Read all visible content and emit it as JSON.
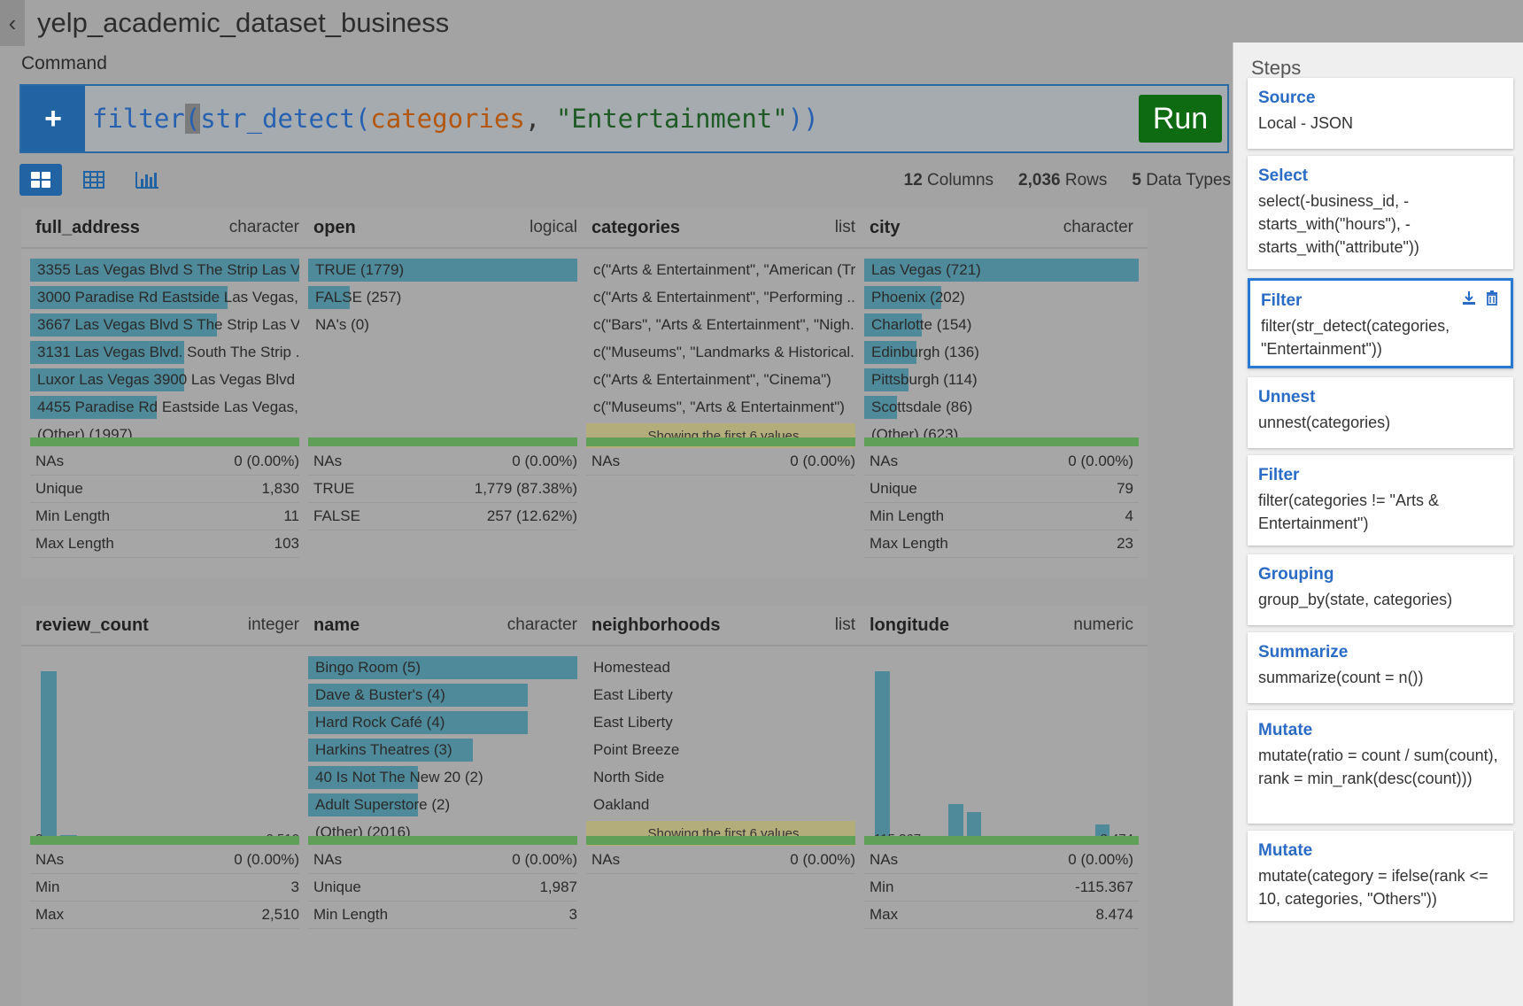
{
  "header": {
    "title": "yelp_academic_dataset_business"
  },
  "command": {
    "label": "Command",
    "parts": {
      "fn": "filter",
      "open": "(",
      "inner_fn": "str_detect(",
      "arg": "categories",
      "comma": ", ",
      "str": "\"Entertainment\"",
      "close": "))"
    },
    "run_label": "Run"
  },
  "summary": {
    "columns_count": "12",
    "columns_label": "Columns",
    "rows_count": "2,036",
    "rows_label": "Rows",
    "types_count": "5",
    "types_label": "Data Types"
  },
  "cards": {
    "full_address": {
      "name": "full_address",
      "type": "character",
      "bars": [
        {
          "label": "3355 Las Vegas Blvd S The Strip Las V...",
          "frac": 1.0
        },
        {
          "label": "3000 Paradise Rd Eastside Las Vegas, ...",
          "frac": 0.72
        },
        {
          "label": "3667 Las Vegas Blvd S The Strip Las V...",
          "frac": 0.68
        },
        {
          "label": "3131 Las Vegas Blvd. South The Strip ...",
          "frac": 0.56
        },
        {
          "label": "Luxor Las Vegas 3900 Las Vegas Blvd ...",
          "frac": 0.56
        },
        {
          "label": "4455 Paradise Rd Eastside Las Vegas, ...",
          "frac": 0.46
        }
      ],
      "other": "(Other) (1997)",
      "stats": [
        [
          "NAs",
          "0 (0.00%)"
        ],
        [
          "Unique",
          "1,830"
        ],
        [
          "Min Length",
          "11"
        ],
        [
          "Max Length",
          "103"
        ]
      ]
    },
    "open": {
      "name": "open",
      "type": "logical",
      "bars": [
        {
          "label": "TRUE (1779)",
          "frac": 1.0
        },
        {
          "label": "FALSE (257)",
          "frac": 0.15
        }
      ],
      "other": "NA's (0)",
      "stats": [
        [
          "NAs",
          "0 (0.00%)"
        ],
        [
          "TRUE",
          "1,779 (87.38%)"
        ],
        [
          "FALSE",
          "257 (12.62%)"
        ]
      ]
    },
    "categories": {
      "name": "categories",
      "type": "list",
      "rows": [
        "c(\"Arts & Entertainment\", \"American (Tr...",
        "c(\"Arts & Entertainment\", \"Performing ...",
        "c(\"Bars\", \"Arts & Entertainment\", \"Nigh...",
        "c(\"Museums\", \"Landmarks & Historical...",
        "c(\"Arts & Entertainment\", \"Cinema\")",
        "c(\"Museums\", \"Arts & Entertainment\")"
      ],
      "notice": "Showing the first 6 values",
      "stats": [
        [
          "NAs",
          "0 (0.00%)"
        ]
      ]
    },
    "city": {
      "name": "city",
      "type": "character",
      "bars": [
        {
          "label": "Las Vegas (721)",
          "frac": 1.0
        },
        {
          "label": "Phoenix (202)",
          "frac": 0.28
        },
        {
          "label": "Charlotte (154)",
          "frac": 0.21
        },
        {
          "label": "Edinburgh (136)",
          "frac": 0.19
        },
        {
          "label": "Pittsburgh (114)",
          "frac": 0.16
        },
        {
          "label": "Scottsdale (86)",
          "frac": 0.12
        }
      ],
      "other": "(Other) (623)",
      "stats": [
        [
          "NAs",
          "0 (0.00%)"
        ],
        [
          "Unique",
          "79"
        ],
        [
          "Min Length",
          "4"
        ],
        [
          "Max Length",
          "23"
        ]
      ]
    },
    "review_count": {
      "name": "review_count",
      "type": "integer",
      "hist": [
        1.0,
        0.035,
        0.01,
        0.01,
        0.01,
        0.01,
        0.01,
        0.01,
        0.01,
        0.01,
        0.01,
        0.01,
        0.01
      ],
      "min_label": "3",
      "max_label": "2.510",
      "stats": [
        [
          "NAs",
          "0 (0.00%)"
        ],
        [
          "Min",
          "3"
        ],
        [
          "Max",
          "2,510"
        ]
      ]
    },
    "name": {
      "name": "name",
      "type": "character",
      "bars": [
        {
          "label": "Bingo Room (5)",
          "frac": 1.0
        },
        {
          "label": "Dave & Buster's (4)",
          "frac": 0.8
        },
        {
          "label": "Hard Rock Café (4)",
          "frac": 0.8
        },
        {
          "label": "Harkins Theatres (3)",
          "frac": 0.6
        },
        {
          "label": "40 Is Not The New 20 (2)",
          "frac": 0.4
        },
        {
          "label": "Adult Superstore (2)",
          "frac": 0.4
        }
      ],
      "other": "(Other) (2016)",
      "stats": [
        [
          "NAs",
          "0 (0.00%)"
        ],
        [
          "Unique",
          "1,987"
        ],
        [
          "Min Length",
          "3"
        ]
      ]
    },
    "neighborhoods": {
      "name": "neighborhoods",
      "type": "list",
      "rows": [
        "Homestead",
        "East Liberty",
        "East Liberty",
        "Point Breeze",
        "North Side",
        "Oakland"
      ],
      "notice": "Showing the first 6 values",
      "stats": [
        [
          "NAs",
          "0 (0.00%)"
        ]
      ]
    },
    "longitude": {
      "name": "longitude",
      "type": "numeric",
      "hist": [
        1.0,
        0.01,
        0.01,
        0.01,
        0.22,
        0.17,
        0.01,
        0.01,
        0.01,
        0.01,
        0.01,
        0.01,
        0.1,
        0.03
      ],
      "min_label": "-115.367",
      "max_label": "8.474",
      "stats": [
        [
          "NAs",
          "0 (0.00%)"
        ],
        [
          "Min",
          "-115.367"
        ],
        [
          "Max",
          "8.474"
        ]
      ]
    }
  },
  "steps": {
    "title": "Steps",
    "items": [
      {
        "name": "Source",
        "code": "Local - JSON"
      },
      {
        "name": "Select",
        "code": "select(-business_id, -starts_with(\"hours\"), -starts_with(\"attribute\"))"
      },
      {
        "name": "Filter",
        "code": "filter(str_detect(categories, \"Entertainment\"))"
      },
      {
        "name": "Unnest",
        "code": "unnest(categories)"
      },
      {
        "name": "Filter",
        "code": "filter(categories != \"Arts & Entertainment\")"
      },
      {
        "name": "Grouping",
        "code": "group_by(state, categories)"
      },
      {
        "name": "Summarize",
        "code": "summarize(count = n())"
      },
      {
        "name": "Mutate",
        "code": "mutate(ratio = count / sum(count), rank = min_rank(desc(count)))"
      },
      {
        "name": "Mutate",
        "code": "mutate(category = ifelse(rank <= 10, categories, \"Others\"))"
      }
    ]
  }
}
